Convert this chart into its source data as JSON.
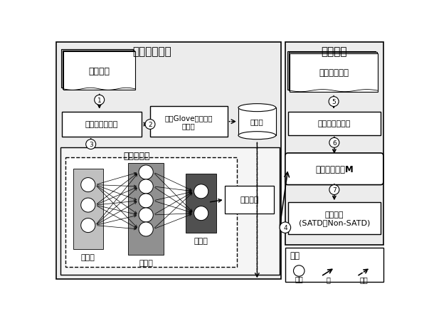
{
  "bg_color": "#ffffff",
  "train_section_label": "训练模型阶段",
  "predict_section_label": "预测阶段",
  "classifier_label": "建立分类器",
  "code_comment_label": "代码注释",
  "preprocess_label": "预处理代码注释",
  "glove_label": "训练Glove模型获得\n词向里",
  "wordvec_label": "词向里",
  "loss_label": "损失函数",
  "new_code_label": "新的代码注释",
  "preprocess2_label": "预处理代码注释",
  "trained_model_label": "训练好的模型M",
  "predict_label": "预测标签\n(SATD或Non-SATD)",
  "nn_input_label": "输入层",
  "nn_hidden_label": "隐藏层",
  "nn_output_label": "输出层",
  "legend_title": "图例",
  "legend_circle_label": "序号",
  "legend_arrow_label": "流",
  "legend_dash_label": "依赖",
  "step_labels": [
    "1",
    "2",
    "3",
    "4",
    "5",
    "6",
    "7"
  ],
  "input_color": "#c0c0c0",
  "hidden_color": "#909090",
  "output_color": "#505050",
  "node_color": "white",
  "box_bg": "white",
  "section_bg": "#f0f0f0",
  "dashed_bg": "white"
}
